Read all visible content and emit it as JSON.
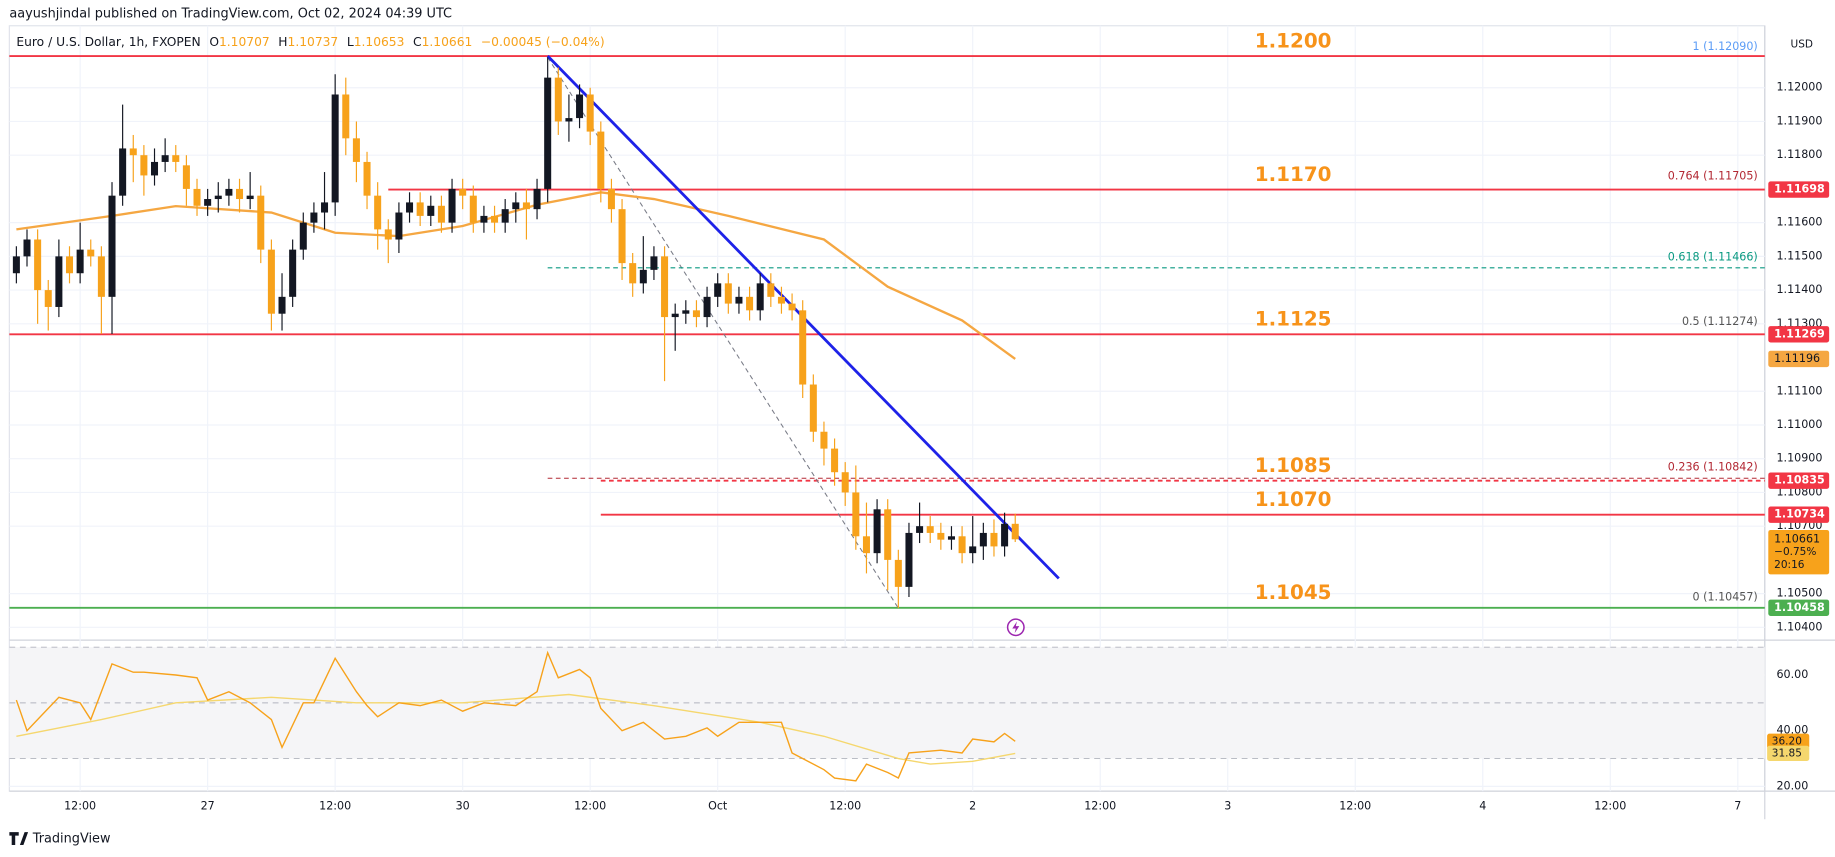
{
  "header": {
    "published": "aayushjindal published on TradingView.com, Oct 02, 2024 04:39 UTC",
    "logo": "TradingView"
  },
  "chart_data": {
    "type": "candlestick",
    "title": "Euro / U.S. Dollar, 1h, FXOPEN",
    "ohlc": [
      {
        "key": "O",
        "value": 1.10707
      },
      {
        "key": "H",
        "value": 1.10737
      },
      {
        "key": "L",
        "value": 1.10653
      },
      {
        "key": "C",
        "value": 1.10661
      }
    ],
    "change_text": "−0.00045 (−0.04%)",
    "currency": "USD",
    "up_color": "#131722",
    "down_color": "#f7a21b",
    "open": [
      1.1145,
      1.115,
      1.1155,
      1.114,
      1.1135,
      1.115,
      1.1145,
      1.1152,
      1.115,
      1.1138,
      1.1168,
      1.1182,
      1.118,
      1.1174,
      1.1178,
      1.118,
      1.1177,
      1.117,
      1.1165,
      1.1167,
      1.1168,
      1.117,
      1.1167,
      1.1168,
      1.1152,
      1.1133,
      1.1138,
      1.1152,
      1.116,
      1.1163,
      1.1166,
      1.1198,
      1.1185,
      1.1178,
      1.1168,
      1.1158,
      1.1155,
      1.1163,
      1.1166,
      1.1162,
      1.1165,
      1.116,
      1.117,
      1.1168,
      1.116,
      1.1162,
      1.116,
      1.1164,
      1.1166,
      1.1164,
      1.117,
      1.1203,
      1.119,
      1.1191,
      1.1198,
      1.1187,
      1.117,
      1.1164,
      1.1148,
      1.1142,
      1.1146,
      1.115,
      1.1132,
      1.1133,
      1.1134,
      1.1132,
      1.1138,
      1.1142,
      1.1136,
      1.1138,
      1.1134,
      1.1142,
      1.1138,
      1.1136,
      1.1134,
      1.1112,
      1.1098,
      1.1093,
      1.1086,
      1.108,
      1.1067,
      1.1062,
      1.1075,
      1.106,
      1.1052,
      1.1068,
      1.107,
      1.1068,
      1.1066,
      1.1067,
      1.1062,
      1.1064,
      1.1068,
      1.1064,
      1.10707
    ],
    "high": [
      1.1153,
      1.1158,
      1.1158,
      1.1143,
      1.1155,
      1.1153,
      1.116,
      1.1155,
      1.1153,
      1.1172,
      1.1195,
      1.1186,
      1.1183,
      1.1182,
      1.1185,
      1.1183,
      1.118,
      1.1173,
      1.117,
      1.1172,
      1.1173,
      1.1173,
      1.1175,
      1.1171,
      1.1155,
      1.1145,
      1.1155,
      1.1163,
      1.1166,
      1.1175,
      1.1204,
      1.1203,
      1.119,
      1.1181,
      1.1172,
      1.1161,
      1.1166,
      1.1169,
      1.1169,
      1.1168,
      1.1168,
      1.1173,
      1.1173,
      1.1171,
      1.1165,
      1.1165,
      1.1167,
      1.1169,
      1.117,
      1.1173,
      1.1209,
      1.1206,
      1.1198,
      1.1201,
      1.12,
      1.119,
      1.1173,
      1.1167,
      1.1151,
      1.1156,
      1.1153,
      1.1153,
      1.1136,
      1.1137,
      1.1137,
      1.1141,
      1.1145,
      1.1145,
      1.1141,
      1.1141,
      1.1145,
      1.1145,
      1.1141,
      1.1139,
      1.1137,
      1.1115,
      1.1101,
      1.1096,
      1.1089,
      1.1088,
      1.1077,
      1.1078,
      1.1078,
      1.1063,
      1.1071,
      1.1077,
      1.1073,
      1.1071,
      1.107,
      1.107,
      1.1073,
      1.1071,
      1.1072,
      1.1074,
      1.10737
    ],
    "low": [
      1.1142,
      1.1147,
      1.113,
      1.1128,
      1.1132,
      1.1142,
      1.1142,
      1.1147,
      1.1127,
      1.1127,
      1.1165,
      1.1172,
      1.1168,
      1.1171,
      1.1175,
      1.1175,
      1.1165,
      1.1162,
      1.1162,
      1.1163,
      1.1165,
      1.1163,
      1.1164,
      1.1148,
      1.1128,
      1.1128,
      1.1135,
      1.1149,
      1.1157,
      1.1158,
      1.1162,
      1.118,
      1.1172,
      1.1164,
      1.1152,
      1.1148,
      1.1151,
      1.116,
      1.1159,
      1.1159,
      1.1157,
      1.1157,
      1.1164,
      1.1157,
      1.1157,
      1.1157,
      1.1157,
      1.116,
      1.1155,
      1.1161,
      1.1166,
      1.1186,
      1.1184,
      1.1188,
      1.1183,
      1.1166,
      1.116,
      1.1143,
      1.1138,
      1.1139,
      1.1143,
      1.1113,
      1.1122,
      1.113,
      1.1129,
      1.1129,
      1.1135,
      1.1133,
      1.1133,
      1.1131,
      1.1131,
      1.1135,
      1.1133,
      1.1131,
      1.1108,
      1.1095,
      1.1088,
      1.1082,
      1.1076,
      1.1063,
      1.1056,
      1.1059,
      1.1051,
      1.10457,
      1.1049,
      1.1065,
      1.1065,
      1.1063,
      1.1063,
      1.1059,
      1.1059,
      1.106,
      1.1061,
      1.1061,
      1.10653
    ],
    "close": [
      1.115,
      1.1155,
      1.114,
      1.1135,
      1.115,
      1.1145,
      1.1152,
      1.115,
      1.1138,
      1.1168,
      1.1182,
      1.118,
      1.1174,
      1.1178,
      1.118,
      1.1178,
      1.117,
      1.1165,
      1.1167,
      1.1168,
      1.117,
      1.1167,
      1.1168,
      1.1152,
      1.1133,
      1.1138,
      1.1152,
      1.116,
      1.1163,
      1.1166,
      1.1198,
      1.1185,
      1.1178,
      1.1168,
      1.1158,
      1.1155,
      1.1163,
      1.1166,
      1.1162,
      1.1165,
      1.116,
      1.117,
      1.1168,
      1.116,
      1.1162,
      1.116,
      1.1164,
      1.1166,
      1.1164,
      1.117,
      1.1203,
      1.119,
      1.1191,
      1.1198,
      1.1187,
      1.117,
      1.1164,
      1.1148,
      1.1142,
      1.1146,
      1.115,
      1.1132,
      1.1133,
      1.1134,
      1.1132,
      1.1138,
      1.1142,
      1.1136,
      1.1138,
      1.1134,
      1.1142,
      1.1138,
      1.1136,
      1.1134,
      1.1112,
      1.1098,
      1.1093,
      1.1086,
      1.108,
      1.1067,
      1.1062,
      1.1075,
      1.106,
      1.1052,
      1.1068,
      1.107,
      1.1068,
      1.1066,
      1.1067,
      1.1062,
      1.1064,
      1.1068,
      1.1064,
      1.10707,
      1.10661
    ],
    "last_change": "−0.75%",
    "countdown": "20:16",
    "ma": {
      "color": "#f5a742",
      "x": [
        0,
        9,
        15,
        24,
        30,
        36,
        42,
        49,
        55,
        60,
        67,
        76,
        82,
        89,
        94
      ],
      "values": [
        1.1158,
        1.1162,
        1.11649,
        1.1163,
        1.1157,
        1.1156,
        1.1159,
        1.11653,
        1.1169,
        1.1167,
        1.1162,
        1.1155,
        1.1141,
        1.1131,
        1.11196
      ]
    },
    "trendline": {
      "color": "#1e22e8",
      "x": [
        50,
        98.1
      ],
      "y": [
        1.12094,
        1.10545
      ]
    },
    "hlines": [
      {
        "value": 1.12094,
        "color": "#f23645",
        "note": "1.1200"
      },
      {
        "value": 1.11698,
        "color": "#f23645",
        "from": 35,
        "note": "1.1170",
        "badge": true
      },
      {
        "value": 1.11269,
        "color": "#f23645",
        "note": "1.1125",
        "badge": true
      },
      {
        "value": 1.10835,
        "color": "#f23645",
        "from": 55,
        "dash": true,
        "note": "1.1085",
        "badge": true
      },
      {
        "value": 1.10734,
        "color": "#f23645",
        "from": 55,
        "note": "1.1070",
        "badge": true
      },
      {
        "value": 1.10458,
        "color": "#4caf50",
        "note": "1.1045",
        "badge": true
      }
    ],
    "note_color": "#f7931a",
    "fib": {
      "x": [
        50,
        83
      ],
      "levels": [
        {
          "label": "1 (1.12090)",
          "value": 1.1209,
          "color": "#5b9cf6"
        },
        {
          "label": "0.764 (1.11705)",
          "value": 1.11705,
          "color": "#b22833"
        },
        {
          "label": "0.618 (1.11466)",
          "value": 1.11466,
          "color": "#089981",
          "line": true
        },
        {
          "label": "0.5 (1.11274)",
          "value": 1.11274,
          "color": "#555555"
        },
        {
          "label": "0.236 (1.10842)",
          "value": 1.10842,
          "color": "#b22833",
          "line": true
        },
        {
          "label": "0 (1.10457)",
          "value": 1.10457,
          "color": "#555555"
        }
      ]
    },
    "xlim": [
      -0.66,
      164.54
    ],
    "xticks": [
      {
        "value": 6,
        "label": "12:00"
      },
      {
        "value": 18,
        "label": "27"
      },
      {
        "value": 30,
        "label": "12:00"
      },
      {
        "value": 42,
        "label": "30"
      },
      {
        "value": 54,
        "label": "12:00"
      },
      {
        "value": 66,
        "label": "Oct"
      },
      {
        "value": 78,
        "label": "12:00"
      },
      {
        "value": 90,
        "label": "2"
      },
      {
        "value": 102,
        "label": "12:00"
      },
      {
        "value": 114,
        "label": "3"
      },
      {
        "value": 126,
        "label": "12:00"
      },
      {
        "value": 138,
        "label": "4"
      },
      {
        "value": 150,
        "label": "12:00"
      },
      {
        "value": 162,
        "label": "7"
      }
    ],
    "ylim": [
      1.10369,
      1.12163
    ],
    "yticks": [
      {
        "value": 1.12,
        "label": "1.12000"
      },
      {
        "value": 1.119,
        "label": "1.11900"
      },
      {
        "value": 1.118,
        "label": "1.11800"
      },
      {
        "value": 1.116,
        "label": "1.11600"
      },
      {
        "value": 1.115,
        "label": "1.11500"
      },
      {
        "value": 1.114,
        "label": "1.11400"
      },
      {
        "value": 1.113,
        "label": "1.11300"
      },
      {
        "value": 1.111,
        "label": "1.11100"
      },
      {
        "value": 1.11,
        "label": "1.11000"
      },
      {
        "value": 1.109,
        "label": "1.10900"
      },
      {
        "value": 1.108,
        "label": "1.10800"
      },
      {
        "value": 1.107,
        "label": "1.10700"
      },
      {
        "value": 1.105,
        "label": "1.10500"
      },
      {
        "value": 1.104,
        "label": "1.10400"
      }
    ],
    "grid": true,
    "rsi": {
      "color": "#f7a21b",
      "ma_color": "#f5d76e",
      "x": [
        0,
        1,
        3,
        4,
        6,
        7,
        8,
        9,
        11,
        12,
        15,
        17,
        18,
        20,
        22,
        24,
        25,
        27,
        28,
        30,
        32,
        33,
        34,
        36,
        38,
        40,
        42,
        44,
        47,
        49,
        50,
        51,
        53,
        54,
        55,
        57,
        59,
        61,
        63,
        65,
        66,
        68,
        70,
        72,
        73,
        76,
        77,
        79,
        80,
        82,
        83,
        84,
        87,
        89,
        90,
        92,
        93,
        94
      ],
      "values": [
        51,
        40,
        48,
        52,
        50,
        44,
        54,
        64,
        61,
        61,
        60,
        59,
        51,
        54,
        50,
        44,
        34,
        50,
        50,
        66,
        54,
        49,
        45,
        50,
        49,
        51,
        47,
        50,
        49,
        54,
        68,
        59,
        62,
        59,
        48,
        40,
        43,
        37,
        38,
        41,
        38,
        43,
        43,
        43,
        32,
        26,
        23,
        22,
        28,
        25,
        23,
        32,
        33,
        32,
        37,
        36,
        39,
        36.2
      ],
      "ma_x": [
        0,
        8,
        15,
        24,
        32,
        42,
        52,
        60,
        70,
        76,
        83,
        86,
        90,
        94
      ],
      "ma_values": [
        38,
        44,
        50,
        52,
        50,
        50,
        53,
        49,
        43,
        38,
        30,
        28,
        29,
        31.85
      ],
      "badge": {
        "value": 36.2,
        "label": "36.20"
      },
      "ma_badge": {
        "value": 31.85,
        "label": "31.85"
      },
      "ylim": [
        18.3,
        72.1
      ],
      "levels": [
        70,
        50,
        30
      ],
      "yticks": [
        {
          "value": 60,
          "label": "60.00"
        },
        {
          "value": 40,
          "label": "40.00"
        },
        {
          "value": 20,
          "label": "20.00"
        }
      ]
    }
  }
}
